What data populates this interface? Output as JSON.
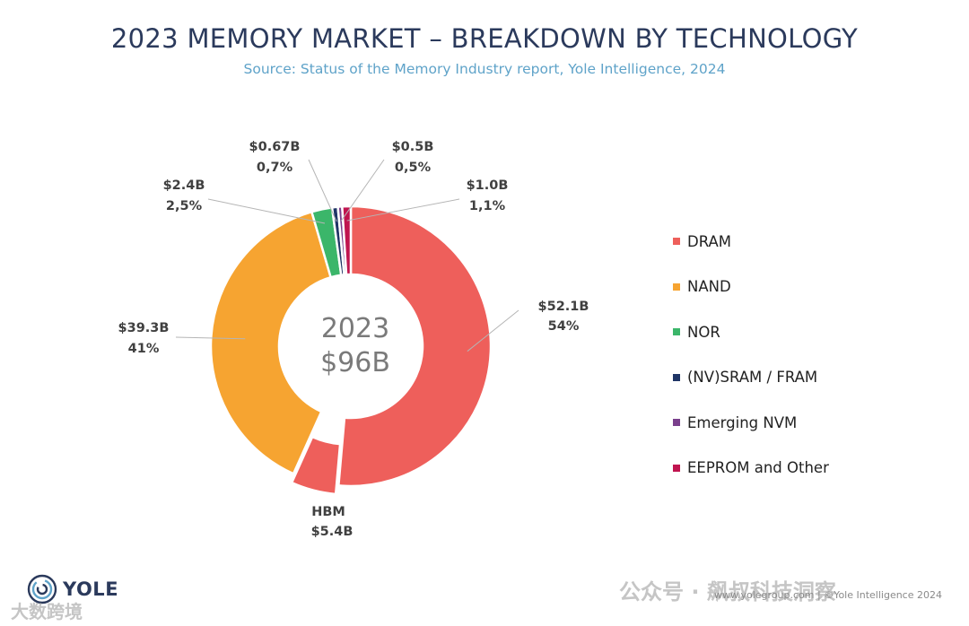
{
  "header": {
    "title": "2023 MEMORY MARKET – BREAKDOWN BY TECHNOLOGY",
    "subtitle": "Source: Status of the Memory Industry report, Yole Intelligence, 2024"
  },
  "chart_data": {
    "type": "pie",
    "variant": "donut",
    "center_label": {
      "year": "2023",
      "total": "$96B"
    },
    "legend_position": "right",
    "slices": [
      {
        "name": "DRAM",
        "value": 52.1,
        "value_label": "$52.1B",
        "percent_label": "54%",
        "color": "#ee5f5b"
      },
      {
        "name": "HBM",
        "value": 5.4,
        "value_label": "$5.4B",
        "percent_label": "HBM",
        "color": "#ee5f5b",
        "exploded": true
      },
      {
        "name": "NAND",
        "value": 39.3,
        "value_label": "$39.3B",
        "percent_label": "41%",
        "color": "#f6a431"
      },
      {
        "name": "NOR",
        "value": 2.4,
        "value_label": "$2.4B",
        "percent_label": "2,5%",
        "color": "#3bb66a"
      },
      {
        "name": "(NV)SRAM / FRAM",
        "value": 0.67,
        "value_label": "$0.67B",
        "percent_label": "0,7%",
        "color": "#1f3566"
      },
      {
        "name": "Emerging NVM",
        "value": 0.5,
        "value_label": "$0.5B",
        "percent_label": "0,5%",
        "color": "#7a3f8c"
      },
      {
        "name": "EEPROM and Other",
        "value": 1.0,
        "value_label": "$1.0B",
        "percent_label": "1,1%",
        "color": "#c0144f"
      }
    ],
    "legend": [
      {
        "name": "DRAM",
        "color": "#ee5f5b"
      },
      {
        "name": "NAND",
        "color": "#f6a431"
      },
      {
        "name": "NOR",
        "color": "#3bb66a"
      },
      {
        "name": "(NV)SRAM / FRAM",
        "color": "#1f3566"
      },
      {
        "name": "Emerging NVM",
        "color": "#7a3f8c"
      },
      {
        "name": "EEPROM and Other",
        "color": "#c0144f"
      }
    ]
  },
  "branding": {
    "logo": "YOLE",
    "logo_icon": "yole-spiral-icon",
    "footer": "www.yolegroup.com | ©Yole Intelligence 2024",
    "watermark": "公众号 · 飙叔科技洞察",
    "watermark_bottom": "大数跨境"
  }
}
